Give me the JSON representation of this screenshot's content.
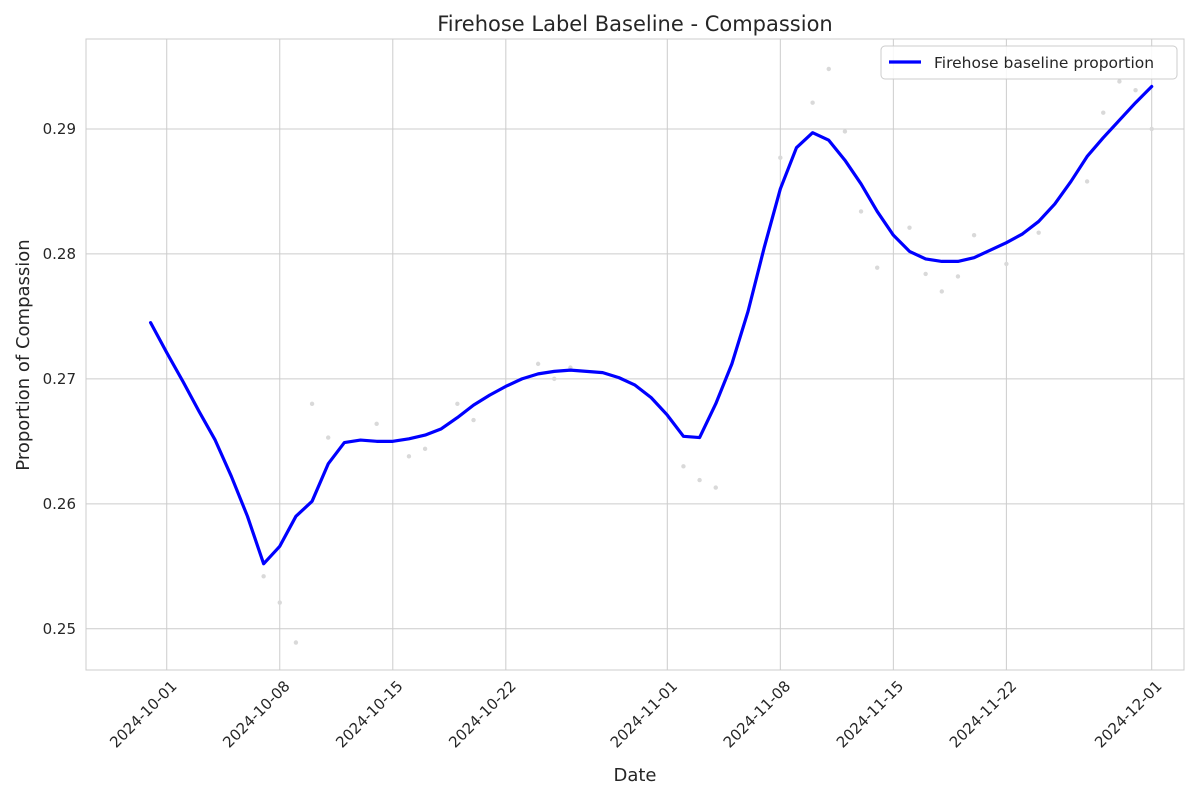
{
  "chart_data": {
    "type": "line",
    "title": "Firehose Label Baseline - Compassion",
    "xlabel": "Date",
    "ylabel": "Proportion of Compassion",
    "x_tick_labels": [
      "2024-10-01",
      "2024-10-08",
      "2024-10-15",
      "2024-10-22",
      "2024-11-01",
      "2024-11-08",
      "2024-11-15",
      "2024-11-22",
      "2024-12-01"
    ],
    "y_tick_labels": [
      "0.25",
      "0.26",
      "0.27",
      "0.28",
      "0.29"
    ],
    "y_ticks": [
      0.25,
      0.26,
      0.27,
      0.28,
      0.29
    ],
    "xlim": [
      "2024-09-26",
      "2024-12-03"
    ],
    "ylim": [
      0.2467,
      0.2972
    ],
    "grid": true,
    "legend_position": "top-right",
    "series": [
      {
        "name": "Firehose baseline proportion",
        "color": "#0000ff",
        "x": [
          "2024-09-30",
          "2024-10-01",
          "2024-10-02",
          "2024-10-03",
          "2024-10-04",
          "2024-10-05",
          "2024-10-06",
          "2024-10-07",
          "2024-10-08",
          "2024-10-09",
          "2024-10-10",
          "2024-10-11",
          "2024-10-12",
          "2024-10-13",
          "2024-10-14",
          "2024-10-15",
          "2024-10-16",
          "2024-10-17",
          "2024-10-18",
          "2024-10-19",
          "2024-10-20",
          "2024-10-21",
          "2024-10-22",
          "2024-10-23",
          "2024-10-24",
          "2024-10-25",
          "2024-10-26",
          "2024-10-27",
          "2024-10-28",
          "2024-10-29",
          "2024-10-30",
          "2024-10-31",
          "2024-11-01",
          "2024-11-02",
          "2024-11-03",
          "2024-11-04",
          "2024-11-05",
          "2024-11-06",
          "2024-11-07",
          "2024-11-08",
          "2024-11-09",
          "2024-11-10",
          "2024-11-11",
          "2024-11-12",
          "2024-11-13",
          "2024-11-14",
          "2024-11-15",
          "2024-11-16",
          "2024-11-17",
          "2024-11-18",
          "2024-11-19",
          "2024-11-20",
          "2024-11-21",
          "2024-11-22",
          "2024-11-23",
          "2024-11-24",
          "2024-11-25",
          "2024-11-26",
          "2024-11-27",
          "2024-11-28",
          "2024-11-29",
          "2024-11-30",
          "2024-12-01"
        ],
        "values": [
          0.2745,
          0.2721,
          0.2698,
          0.2674,
          0.2651,
          0.2622,
          0.259,
          0.2552,
          0.2566,
          0.259,
          0.2602,
          0.2632,
          0.2649,
          0.2651,
          0.265,
          0.265,
          0.2652,
          0.2655,
          0.266,
          0.2669,
          0.2679,
          0.2687,
          0.2694,
          0.27,
          0.2704,
          0.2706,
          0.2707,
          0.2706,
          0.2705,
          0.2701,
          0.2695,
          0.2685,
          0.2671,
          0.2654,
          0.2653,
          0.268,
          0.2712,
          0.2754,
          0.2805,
          0.2852,
          0.2885,
          0.2897,
          0.2891,
          0.2875,
          0.2856,
          0.2834,
          0.2815,
          0.2802,
          0.2796,
          0.2794,
          0.2794,
          0.2797,
          0.2803,
          0.2809,
          0.2816,
          0.2826,
          0.284,
          0.2858,
          0.2878,
          0.2893,
          0.2907,
          0.2921,
          0.2934
        ]
      },
      {
        "name": "",
        "style": "scatter",
        "color": "#d9d9d9",
        "x": [
          "2024-10-07",
          "2024-10-08",
          "2024-10-09",
          "2024-10-10",
          "2024-10-11",
          "2024-10-14",
          "2024-10-16",
          "2024-10-17",
          "2024-10-19",
          "2024-10-20",
          "2024-10-24",
          "2024-10-25",
          "2024-10-26",
          "2024-11-02",
          "2024-11-03",
          "2024-11-04",
          "2024-11-08",
          "2024-11-10",
          "2024-11-11",
          "2024-11-12",
          "2024-11-13",
          "2024-11-14",
          "2024-11-16",
          "2024-11-17",
          "2024-11-18",
          "2024-11-19",
          "2024-11-20",
          "2024-11-22",
          "2024-11-24",
          "2024-11-27",
          "2024-11-28",
          "2024-11-29",
          "2024-11-30",
          "2024-12-01"
        ],
        "values": [
          0.2542,
          0.2521,
          0.2489,
          0.268,
          0.2653,
          0.2664,
          0.2638,
          0.2644,
          0.268,
          0.2667,
          0.2712,
          0.27,
          0.2709,
          0.263,
          0.2619,
          0.2613,
          0.2877,
          0.2921,
          0.2948,
          0.2898,
          0.2834,
          0.2789,
          0.2821,
          0.2784,
          0.277,
          0.2782,
          0.2815,
          0.2792,
          0.2817,
          0.2858,
          0.2913,
          0.2938,
          0.2931,
          0.29
        ]
      }
    ]
  }
}
